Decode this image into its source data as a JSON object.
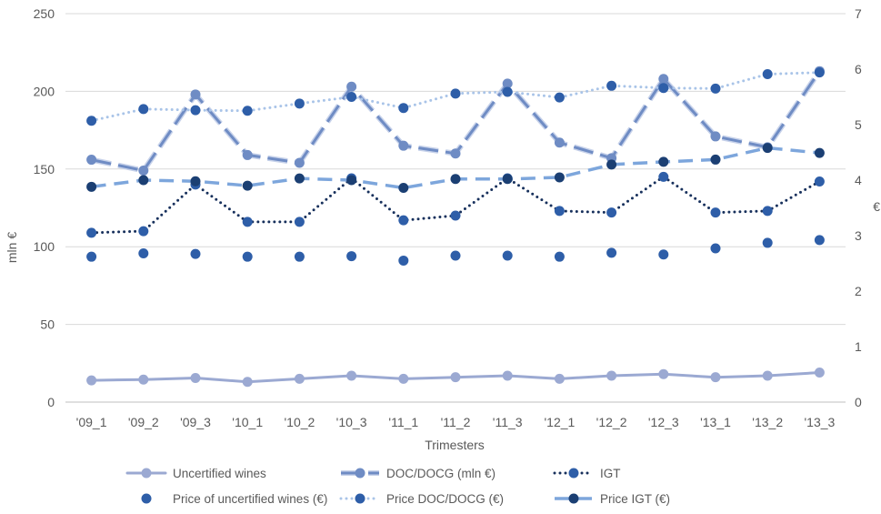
{
  "chart_data": {
    "type": "line",
    "title": "",
    "xlabel": "Trimesters",
    "ylabel": "mln €",
    "y2label": "€",
    "categories": [
      "'09_1",
      "'09_2",
      "'09_3",
      "'10_1",
      "'10_2",
      "'10_3",
      "'11_1",
      "'11_2",
      "'11_3",
      "'12_1",
      "'12_2",
      "'12_3",
      "'13_1",
      "'13_2",
      "'13_3"
    ],
    "ylim": [
      0,
      250
    ],
    "yticks": [
      "0",
      "50",
      "100",
      "150",
      "200",
      "250"
    ],
    "y2lim": [
      0,
      7
    ],
    "y2ticks": [
      "0",
      "1",
      "2",
      "3",
      "4",
      "5",
      "6",
      "7"
    ],
    "grid": true,
    "legend_position": "bottom",
    "series": [
      {
        "name": "Uncertified wines",
        "axis": "left",
        "style": "solid",
        "color": "#9BA9D2",
        "values": [
          14,
          14.5,
          15.5,
          13,
          15,
          17,
          15,
          16,
          17,
          15,
          17,
          18,
          16,
          17,
          19
        ]
      },
      {
        "name": "DOC/DOCG (mln €)",
        "axis": "left",
        "style": "longdash",
        "color": "#6F8CC4",
        "values": [
          156,
          149,
          198,
          159,
          154,
          203,
          165,
          160,
          205,
          167,
          157,
          208,
          171,
          164,
          213
        ]
      },
      {
        "name": "IGT",
        "axis": "left",
        "style": "dotted",
        "color": "#17305C",
        "values": [
          109,
          110,
          140,
          116,
          116,
          144,
          117,
          120,
          144,
          123,
          122,
          145,
          122,
          123,
          142
        ]
      },
      {
        "name": "Price of uncertified wines (€)",
        "axis": "right",
        "style": "markers",
        "color": "#2E5EA8",
        "values": [
          2.62,
          2.68,
          2.67,
          2.62,
          2.62,
          2.63,
          2.55,
          2.64,
          2.64,
          2.62,
          2.69,
          2.66,
          2.77,
          2.87,
          2.92
        ]
      },
      {
        "name": "Price DOC/DOCG (€)",
        "axis": "right",
        "style": "dotted",
        "color": "#A9C4E8",
        "values": [
          5.07,
          5.28,
          5.26,
          5.25,
          5.38,
          5.5,
          5.3,
          5.56,
          5.59,
          5.49,
          5.7,
          5.66,
          5.65,
          5.91,
          5.94
        ]
      },
      {
        "name": "Price IGT (€)",
        "axis": "right",
        "style": "dash",
        "color": "#7DA6DC",
        "values": [
          3.88,
          4.0,
          3.98,
          3.9,
          4.03,
          4.0,
          3.86,
          4.02,
          4.02,
          4.05,
          4.28,
          4.33,
          4.37,
          4.58,
          4.49
        ]
      }
    ]
  }
}
